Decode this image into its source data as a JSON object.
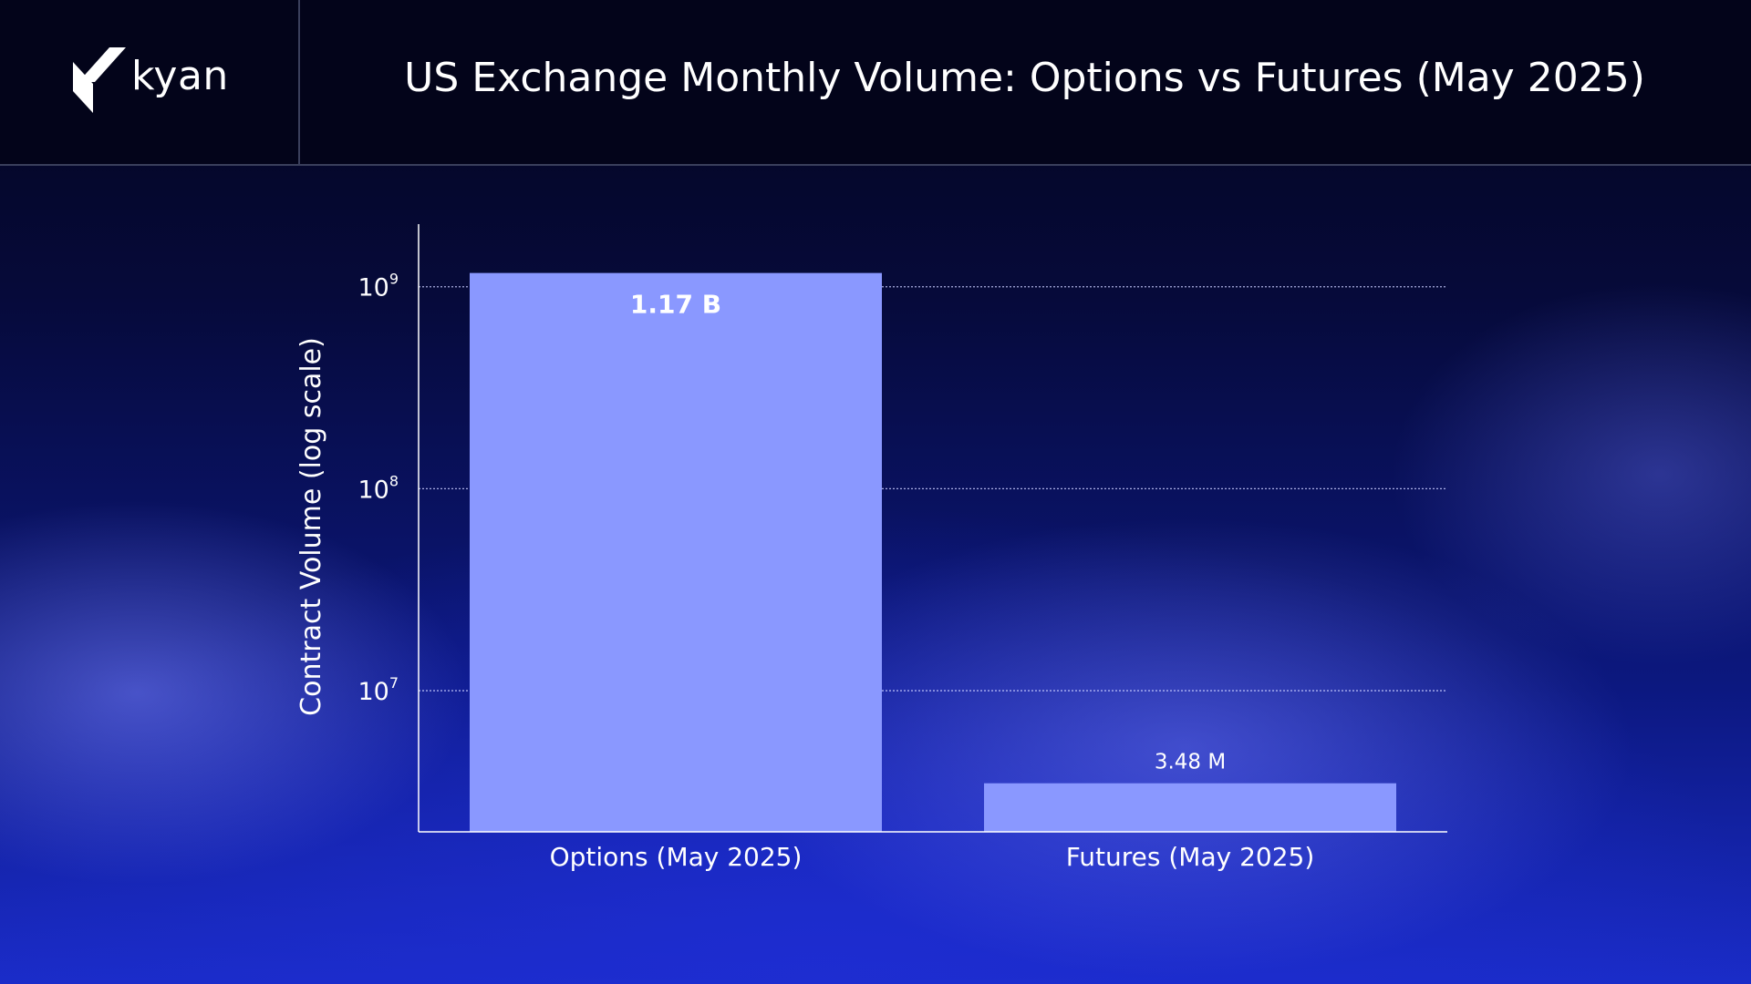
{
  "brand": {
    "name": "kyan",
    "logo_icon": "kyan-logo-icon"
  },
  "colors": {
    "bar": "#8A98FF",
    "grid": "#c8ccff",
    "axis": "#ffffff",
    "header_bg": "#03041a"
  },
  "chart_data": {
    "type": "bar",
    "title": "US Exchange Monthly Volume: Options vs Futures (May 2025)",
    "xlabel": "",
    "ylabel": "Contract Volume (log scale)",
    "yscale": "log",
    "ylim": [
      2000000,
      2000000000
    ],
    "yticks": [
      {
        "value": 10000000,
        "base": "10",
        "exp": "7"
      },
      {
        "value": 100000000,
        "base": "10",
        "exp": "8"
      },
      {
        "value": 1000000000,
        "base": "10",
        "exp": "9"
      }
    ],
    "grid": true,
    "categories": [
      "Options (May 2025)",
      "Futures (May 2025)"
    ],
    "values": [
      1170000000,
      3480000
    ],
    "data_labels": [
      "1.17 B",
      "3.48 M"
    ]
  }
}
